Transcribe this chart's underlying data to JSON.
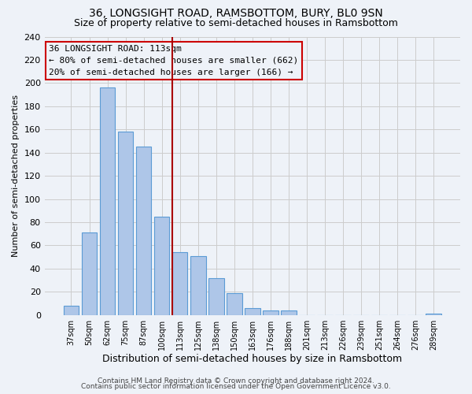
{
  "title": "36, LONGSIGHT ROAD, RAMSBOTTOM, BURY, BL0 9SN",
  "subtitle": "Size of property relative to semi-detached houses in Ramsbottom",
  "xlabel": "Distribution of semi-detached houses by size in Ramsbottom",
  "ylabel": "Number of semi-detached properties",
  "bar_labels": [
    "37sqm",
    "50sqm",
    "62sqm",
    "75sqm",
    "87sqm",
    "100sqm",
    "113sqm",
    "125sqm",
    "138sqm",
    "150sqm",
    "163sqm",
    "176sqm",
    "188sqm",
    "201sqm",
    "213sqm",
    "226sqm",
    "239sqm",
    "251sqm",
    "264sqm",
    "276sqm",
    "289sqm"
  ],
  "bar_values": [
    8,
    71,
    196,
    158,
    145,
    85,
    54,
    51,
    32,
    19,
    6,
    4,
    4,
    0,
    0,
    0,
    0,
    0,
    0,
    0,
    1
  ],
  "bar_color": "#aec6e8",
  "bar_edge_color": "#5b9bd5",
  "vline_color": "#aa0000",
  "annotation_line1": "36 LONGSIGHT ROAD: 113sqm",
  "annotation_line2": "← 80% of semi-detached houses are smaller (662)",
  "annotation_line3": "20% of semi-detached houses are larger (166) →",
  "annotation_box_facecolor": "#eef2f8",
  "annotation_box_edgecolor": "#cc0000",
  "ylim": [
    0,
    240
  ],
  "yticks": [
    0,
    20,
    40,
    60,
    80,
    100,
    120,
    140,
    160,
    180,
    200,
    220,
    240
  ],
  "grid_color": "#cccccc",
  "background_color": "#eef2f8",
  "footer_line1": "Contains HM Land Registry data © Crown copyright and database right 2024.",
  "footer_line2": "Contains public sector information licensed under the Open Government Licence v3.0.",
  "title_fontsize": 10,
  "subtitle_fontsize": 9,
  "annotation_fontsize": 8,
  "footer_fontsize": 6.5,
  "bar_width": 0.85,
  "vline_bar_index": 6
}
